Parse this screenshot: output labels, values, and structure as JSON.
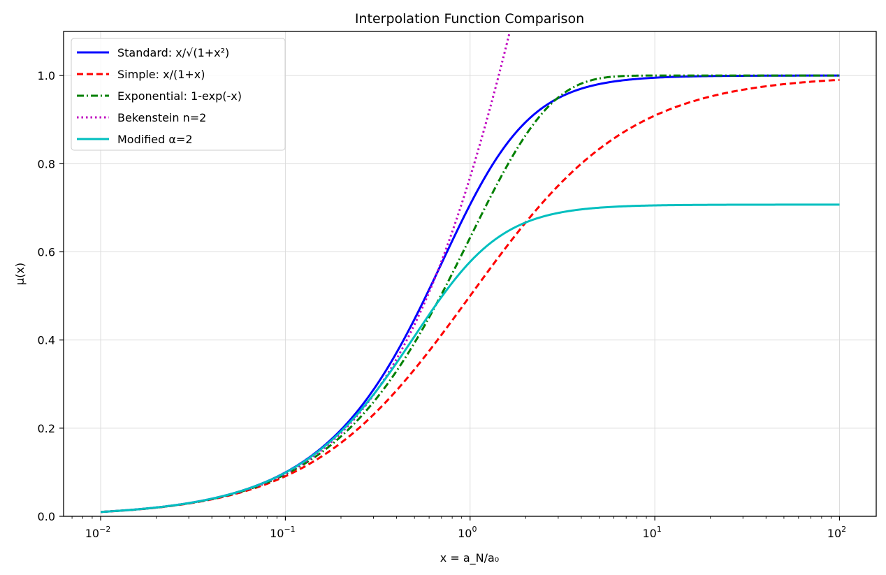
{
  "chart_data": {
    "type": "line",
    "title": "Interpolation Function Comparison",
    "xlabel": "x = a_N/a₀",
    "ylabel": "μ(x)",
    "xscale": "log",
    "xlim": [
      0.0063,
      158
    ],
    "ylim": [
      0.0,
      1.1
    ],
    "x_domain": [
      0.01,
      100
    ],
    "grid": true,
    "legend_position": "top-left",
    "x_ticks": [
      {
        "value": 0.01,
        "base": "10",
        "exp": "−2"
      },
      {
        "value": 0.1,
        "base": "10",
        "exp": "−1"
      },
      {
        "value": 1,
        "base": "10",
        "exp": "0"
      },
      {
        "value": 10,
        "base": "10",
        "exp": "1"
      },
      {
        "value": 100,
        "base": "10",
        "exp": "2"
      }
    ],
    "y_ticks": [
      "0.0",
      "0.2",
      "0.4",
      "0.6",
      "0.8",
      "1.0"
    ],
    "series": [
      {
        "name": "Standard: x/√(1+x²)",
        "formula": "standard",
        "color": "#0000ff",
        "dash": "solid"
      },
      {
        "name": "Simple: x/(1+x)",
        "formula": "simple",
        "color": "#ff0000",
        "dash": "dashed"
      },
      {
        "name": "Exponential: 1-exp(-x)",
        "formula": "exponential",
        "color": "#008000",
        "dash": "dashdot"
      },
      {
        "name": "Bekenstein n=2",
        "formula": "bekenstein",
        "color": "#bf00bf",
        "dash": "dotted"
      },
      {
        "name": "Modified α=2",
        "formula": "modified",
        "color": "#00bfbf",
        "dash": "solid"
      }
    ]
  }
}
